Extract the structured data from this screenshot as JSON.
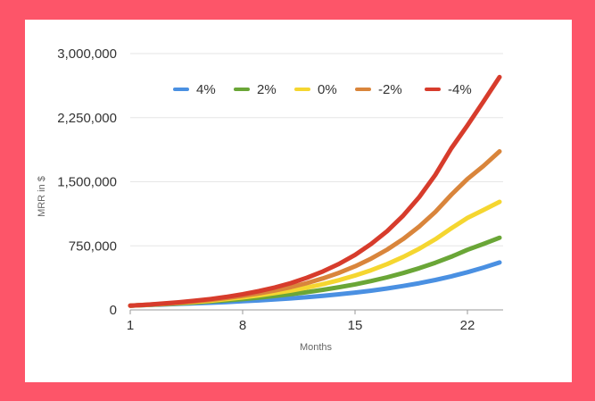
{
  "chart_data": {
    "type": "line",
    "title": "",
    "xlabel": "Months",
    "ylabel": "MRR in $",
    "xlim": [
      1,
      24
    ],
    "ylim": [
      0,
      3000000
    ],
    "x_ticks": [
      1,
      8,
      15,
      22
    ],
    "x_tick_labels": [
      "1",
      "8",
      "15",
      "22"
    ],
    "y_ticks": [
      0,
      750000,
      1500000,
      2250000,
      3000000
    ],
    "y_tick_labels": [
      "0",
      "750,000",
      "1,500,000",
      "2,250,000",
      "3,000,000"
    ],
    "grid": true,
    "legend_position": "top",
    "x": [
      1,
      2,
      3,
      4,
      5,
      6,
      7,
      8,
      9,
      10,
      11,
      12,
      13,
      14,
      15,
      16,
      17,
      18,
      19,
      20,
      21,
      22,
      23,
      24
    ],
    "series": [
      {
        "name": "4%",
        "color": "#4a90e2",
        "values": [
          50000,
          57000,
          63000,
          70000,
          77000,
          84000,
          92000,
          101000,
          111000,
          122000,
          135000,
          149000,
          165000,
          183000,
          203000,
          225000,
          251000,
          280000,
          313000,
          350000,
          393000,
          441000,
          495000,
          555000
        ]
      },
      {
        "name": "2%",
        "color": "#6aa637",
        "values": [
          50000,
          58000,
          67000,
          76000,
          87000,
          99000,
          112000,
          127000,
          144000,
          163000,
          184000,
          208000,
          235000,
          265000,
          299000,
          338000,
          382000,
          432000,
          488000,
          552000,
          623000,
          703000,
          772000,
          845000
        ]
      },
      {
        "name": "0%",
        "color": "#f5d630",
        "values": [
          50000,
          59000,
          69000,
          80000,
          93000,
          108000,
          126000,
          146000,
          169000,
          196000,
          226000,
          261000,
          301000,
          348000,
          402000,
          464000,
          536000,
          620000,
          716000,
          827000,
          955000,
          1077000,
          1170000,
          1265000
        ]
      },
      {
        "name": "-2%",
        "color": "#d9853b",
        "values": [
          50000,
          60000,
          71000,
          84000,
          100000,
          118000,
          139000,
          164000,
          193000,
          227000,
          267000,
          314000,
          369000,
          434000,
          510000,
          600000,
          706000,
          830000,
          976000,
          1147000,
          1348000,
          1532000,
          1685000,
          1855000
        ]
      },
      {
        "name": "-4%",
        "color": "#d73c2c",
        "values": [
          50000,
          61000,
          74000,
          89000,
          107000,
          128000,
          153000,
          183000,
          219000,
          262000,
          314000,
          376000,
          450000,
          538000,
          644000,
          771000,
          922000,
          1104000,
          1321000,
          1581000,
          1892000,
          2160000,
          2440000,
          2725000
        ]
      }
    ]
  }
}
